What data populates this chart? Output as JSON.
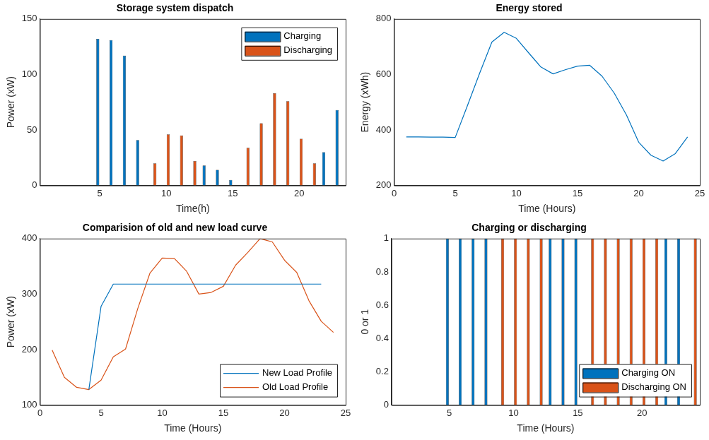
{
  "chart_data": [
    {
      "type": "bar",
      "title": "Storage system dispatch",
      "xlabel": "Time(h)",
      "ylabel": "Power (xW)",
      "x": [
        1,
        2,
        3,
        4,
        5,
        6,
        7,
        8,
        9,
        10,
        11,
        12,
        13,
        14,
        15,
        16,
        17,
        18,
        19,
        20,
        21,
        22,
        23
      ],
      "xlim": [
        0.5,
        23.5
      ],
      "xticks": [
        5,
        10,
        15,
        20
      ],
      "ylim": [
        0,
        150
      ],
      "yticks": [
        0,
        50,
        100,
        150
      ],
      "grid": false,
      "legend": "top right",
      "series": [
        {
          "name": "Charging",
          "color": "#0072bd",
          "values": [
            0,
            0,
            0,
            0,
            132,
            131,
            117,
            41,
            0,
            0,
            0,
            0,
            18,
            14,
            5,
            0,
            0,
            0,
            0,
            0,
            0,
            30,
            68
          ]
        },
        {
          "name": "Discharging",
          "color": "#d95319",
          "values": [
            0,
            0,
            0,
            0,
            0,
            0,
            0,
            0,
            20,
            46,
            45,
            22,
            0,
            0,
            0,
            34,
            56,
            83,
            76,
            42,
            20,
            0,
            0
          ]
        }
      ]
    },
    {
      "type": "line",
      "title": "Energy stored",
      "xlabel": "Time (Hours)",
      "ylabel": "Energy (xWh)",
      "xlim": [
        0,
        25
      ],
      "xticks": [
        0,
        5,
        10,
        15,
        20,
        25
      ],
      "ylim": [
        200,
        800
      ],
      "yticks": [
        200,
        400,
        600,
        800
      ],
      "grid": false,
      "series": [
        {
          "color": "#0072bd",
          "x": [
            1,
            2,
            3,
            4,
            5,
            6,
            7,
            8,
            9,
            10,
            11,
            12,
            13,
            14,
            15,
            16,
            17,
            18,
            19,
            20,
            21,
            22,
            23,
            24
          ],
          "values": [
            375,
            375,
            374,
            374,
            373,
            488,
            605,
            717,
            752,
            730,
            678,
            627,
            602,
            617,
            630,
            633,
            594,
            533,
            454,
            356,
            309,
            288,
            315,
            375
          ]
        }
      ]
    },
    {
      "type": "line",
      "title": "Comparision of old and new load curve",
      "xlabel": "Time (Hours)",
      "ylabel": "Power (xW)",
      "xlim": [
        0,
        25
      ],
      "xticks": [
        0,
        5,
        10,
        15,
        20,
        25
      ],
      "ylim": [
        100,
        400
      ],
      "yticks": [
        100,
        200,
        300,
        400
      ],
      "grid": false,
      "legend": "bottom right",
      "series": [
        {
          "name": "New Load Profile",
          "color": "#0072bd",
          "x": [
            4,
            5,
            6,
            7,
            8,
            9,
            10,
            11,
            12,
            13,
            14,
            15,
            16,
            17,
            18,
            19,
            20,
            21,
            22,
            23
          ],
          "values": [
            128,
            278,
            318,
            318,
            318,
            318,
            318,
            318,
            318,
            318,
            318,
            318,
            318,
            318,
            318,
            318,
            318,
            318,
            318,
            318
          ]
        },
        {
          "name": "Old Load Profile",
          "color": "#d95319",
          "x": [
            1,
            2,
            3,
            4,
            5,
            6,
            7,
            8,
            9,
            10,
            11,
            12,
            13,
            14,
            15,
            16,
            17,
            18,
            19,
            20,
            21,
            22,
            23,
            24
          ],
          "values": [
            199,
            150,
            132,
            128,
            145,
            187,
            201,
            274,
            338,
            365,
            364,
            341,
            300,
            303,
            314,
            352,
            375,
            400,
            394,
            361,
            339,
            288,
            251,
            231
          ]
        }
      ]
    },
    {
      "type": "bar",
      "title": "Charging or discharging",
      "xlabel": "Time (Hours)",
      "ylabel": "0 or 1",
      "x": [
        1,
        2,
        3,
        4,
        5,
        6,
        7,
        8,
        9,
        10,
        11,
        12,
        13,
        14,
        15,
        16,
        17,
        18,
        19,
        20,
        21,
        22,
        23,
        24
      ],
      "xlim": [
        0.5,
        24.5
      ],
      "xticks": [
        5,
        10,
        15,
        20
      ],
      "ylim": [
        0,
        1
      ],
      "yticks": [
        0,
        0.2,
        0.4,
        0.6,
        0.8,
        1
      ],
      "grid": false,
      "legend": "bottom right",
      "series": [
        {
          "name": "Charging ON",
          "color": "#0072bd",
          "values": [
            0,
            0,
            0,
            0,
            1,
            1,
            1,
            1,
            0,
            0,
            0,
            0,
            1,
            1,
            1,
            0,
            0,
            0,
            0,
            0,
            0,
            1,
            1,
            0
          ]
        },
        {
          "name": "Discharging ON",
          "color": "#d95319",
          "values": [
            0,
            0,
            0,
            0,
            0,
            0,
            0,
            0,
            1,
            1,
            1,
            1,
            0,
            0,
            0,
            1,
            1,
            1,
            1,
            1,
            1,
            0,
            0,
            1
          ]
        }
      ]
    }
  ]
}
